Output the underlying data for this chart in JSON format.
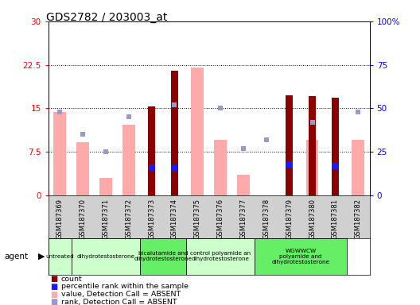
{
  "title": "GDS2782 / 203003_at",
  "samples": [
    "GSM187369",
    "GSM187370",
    "GSM187371",
    "GSM187372",
    "GSM187373",
    "GSM187374",
    "GSM187375",
    "GSM187376",
    "GSM187377",
    "GSM187378",
    "GSM187379",
    "GSM187380",
    "GSM187381",
    "GSM187382"
  ],
  "count_values": [
    null,
    null,
    null,
    null,
    15.3,
    21.5,
    null,
    null,
    null,
    null,
    17.2,
    17.1,
    16.8,
    null
  ],
  "percentile_rank_values": [
    null,
    null,
    null,
    null,
    16.0,
    15.4,
    null,
    null,
    null,
    null,
    17.6,
    null,
    17.0,
    null
  ],
  "absent_value": [
    14.4,
    9.2,
    3.0,
    12.2,
    null,
    null,
    22.0,
    9.5,
    3.5,
    null,
    null,
    9.5,
    null,
    9.5
  ],
  "absent_rank": [
    48,
    35,
    25,
    45,
    null,
    52,
    null,
    50,
    27,
    32,
    null,
    42,
    null,
    48
  ],
  "agents": [
    {
      "label": "untreated",
      "start": 0,
      "end": 1
    },
    {
      "label": "dihydrotestosterone",
      "start": 1,
      "end": 4
    },
    {
      "label": "bicalutamide and\ndihydrotestosterone",
      "start": 4,
      "end": 6
    },
    {
      "label": "control polyamide an\ndihydrotestosterone",
      "start": 6,
      "end": 9
    },
    {
      "label": "WGWWCW\npolyamide and\ndihydrotestosterone",
      "start": 9,
      "end": 13
    }
  ],
  "agent_colors": [
    "#ccffcc",
    "#ccffcc",
    "#66ee66",
    "#ccffcc",
    "#66ee66"
  ],
  "ylim_left": [
    0,
    30
  ],
  "ylim_right": [
    0,
    100
  ],
  "yticks_left": [
    0,
    7.5,
    15,
    22.5,
    30
  ],
  "yticks_right": [
    0,
    25,
    50,
    75,
    100
  ],
  "ytick_labels_left": [
    "0",
    "7.5",
    "15",
    "22.5",
    "30"
  ],
  "ytick_labels_right": [
    "0",
    "25",
    "50",
    "75",
    "100%"
  ],
  "bar_color_count": "#8b0000",
  "bar_color_absent_val": "#ffaaaa",
  "dot_color_rank": "#1a1aff",
  "dot_color_absent_rank": "#9999cc"
}
